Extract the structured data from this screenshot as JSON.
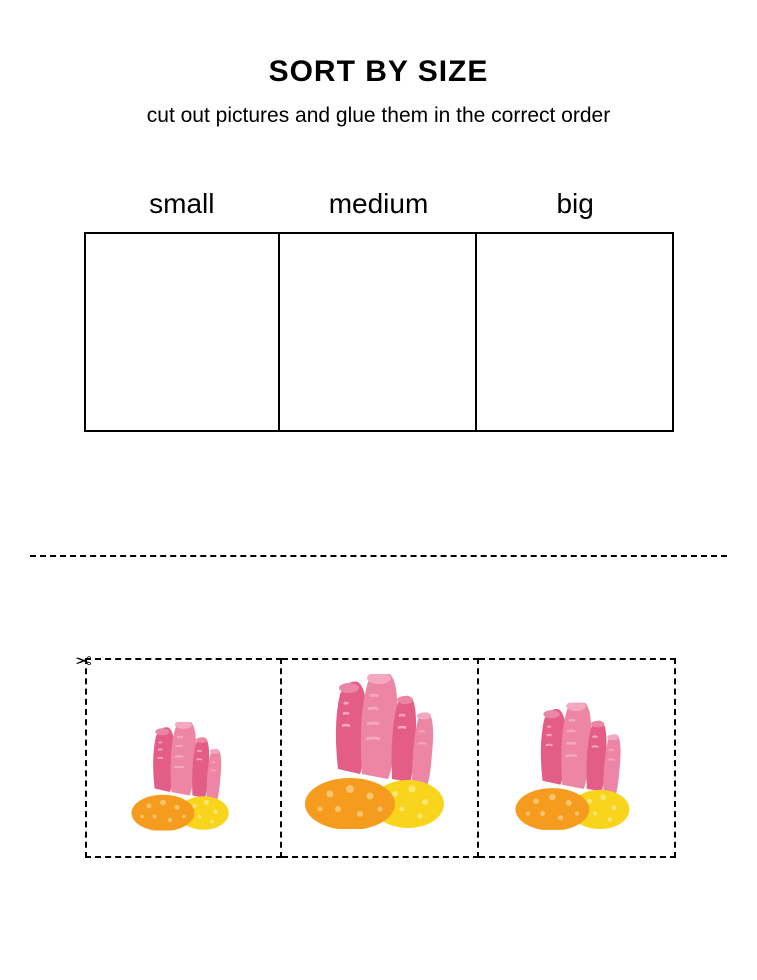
{
  "title": "SORT BY SIZE",
  "subtitle": "cut out pictures and glue them in the correct order",
  "labels": [
    "small",
    "medium",
    "big"
  ],
  "colors": {
    "tube_light": "#ed86a6",
    "tube_dark": "#e45d86",
    "tube_stripe": "#f4a8bf",
    "rock_orange": "#f59b1e",
    "rock_orange_dot": "#fbc56f",
    "rock_yellow": "#f9d41c",
    "rock_yellow_dot": "#fce676",
    "border": "#000000",
    "bg": "#ffffff"
  },
  "cut_items": [
    {
      "scale": 0.7
    },
    {
      "scale": 1.0
    },
    {
      "scale": 0.82
    }
  ]
}
